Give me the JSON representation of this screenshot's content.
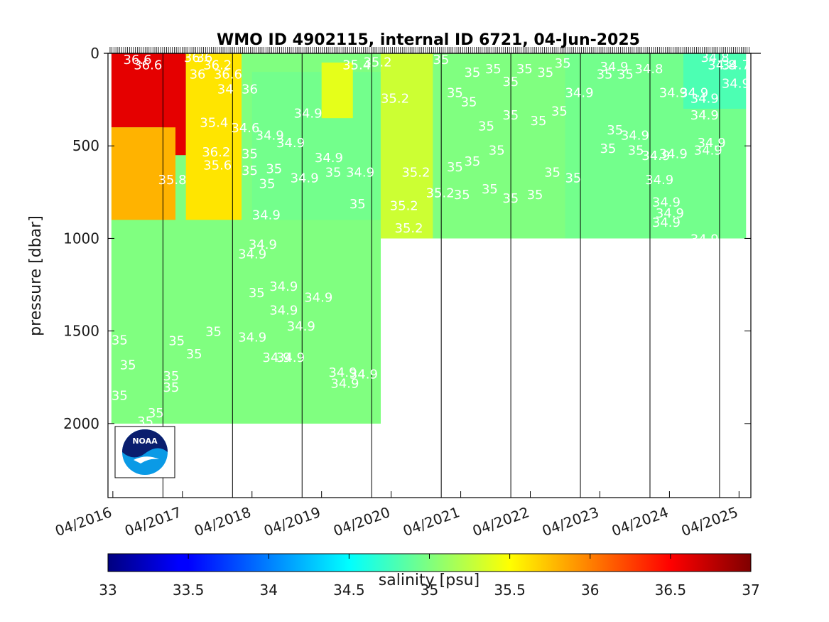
{
  "chart_data": {
    "type": "heatmap",
    "title": "WMO ID 4902115, internal ID 6721, 04-Jun-2025",
    "ylabel": "pressure [dbar]",
    "xlabel": "",
    "ylim": [
      2400,
      0
    ],
    "y_reversed": true,
    "y_ticks": [
      0,
      500,
      1000,
      1500,
      2000
    ],
    "x_start_year": 2016,
    "xlim_years": [
      2015.93,
      2025.17
    ],
    "x_tick_labels": [
      "04/2016",
      "04/2017",
      "04/2018",
      "04/2019",
      "04/2020",
      "04/2021",
      "04/2022",
      "04/2023",
      "04/2024",
      "04/2025"
    ],
    "x_tick_years": [
      2016.0,
      2017.0,
      2018.0,
      2019.0,
      2020.0,
      2021.0,
      2022.0,
      2023.0,
      2024.0,
      2025.0
    ],
    "vertical_lines_years": [
      2016.72,
      2017.72,
      2018.72,
      2019.72,
      2020.72,
      2021.72,
      2022.72,
      2023.72,
      2024.72
    ],
    "colorbar": {
      "label": "salinity [psu]",
      "range": [
        33,
        37
      ],
      "ticks": [
        "33",
        "33.5",
        "34",
        "34.5",
        "35",
        "35.5",
        "36",
        "36.5",
        "37"
      ],
      "colormap": "jet"
    },
    "profile_max_depth": [
      {
        "from": 2015.98,
        "to": 2019.85,
        "pressure": 2000
      },
      {
        "from": 2019.85,
        "to": 2025.1,
        "pressure": 1000
      }
    ],
    "regions": [
      {
        "from": 2015.98,
        "to": 2016.72,
        "pressure_range": [
          0,
          400
        ],
        "salinity": 36.6
      },
      {
        "from": 2016.72,
        "to": 2017.05,
        "pressure_range": [
          0,
          550
        ],
        "salinity": 36.6
      },
      {
        "from": 2015.98,
        "to": 2016.9,
        "pressure_range": [
          400,
          900
        ],
        "salinity": 35.8
      },
      {
        "from": 2017.05,
        "to": 2017.85,
        "pressure_range": [
          0,
          900
        ],
        "salinity": 35.6
      },
      {
        "from": 2015.98,
        "to": 2019.85,
        "pressure_range": [
          900,
          2000
        ],
        "salinity": 35.0
      },
      {
        "from": 2018.0,
        "to": 2019.85,
        "pressure_range": [
          100,
          900
        ],
        "salinity": 34.95
      },
      {
        "from": 2019.0,
        "to": 2019.45,
        "pressure_range": [
          50,
          350
        ],
        "salinity": 35.4
      },
      {
        "from": 2019.85,
        "to": 2020.6,
        "pressure_range": [
          0,
          1000
        ],
        "salinity": 35.3
      },
      {
        "from": 2020.6,
        "to": 2022.5,
        "pressure_range": [
          0,
          1000
        ],
        "salinity": 35.0
      },
      {
        "from": 2022.5,
        "to": 2024.2,
        "pressure_range": [
          0,
          1000
        ],
        "salinity": 34.95
      },
      {
        "from": 2024.2,
        "to": 2025.1,
        "pressure_range": [
          0,
          300
        ],
        "salinity": 34.8
      },
      {
        "from": 2024.2,
        "to": 2025.1,
        "pressure_range": [
          300,
          1000
        ],
        "salinity": 34.95
      }
    ],
    "contour_labels": [
      {
        "t": "36.6",
        "x": 2016.15,
        "p": 30
      },
      {
        "t": "36.6",
        "x": 2016.3,
        "p": 60
      },
      {
        "t": "36",
        "x": 2017.02,
        "p": 20
      },
      {
        "t": "36",
        "x": 2017.2,
        "p": 20
      },
      {
        "t": "36.2",
        "x": 2017.3,
        "p": 60
      },
      {
        "t": "36.6",
        "x": 2017.45,
        "p": 110
      },
      {
        "t": "36",
        "x": 2017.1,
        "p": 110
      },
      {
        "t": "34",
        "x": 2017.5,
        "p": 190
      },
      {
        "t": "36",
        "x": 2017.85,
        "p": 190
      },
      {
        "t": "35.4",
        "x": 2017.25,
        "p": 370
      },
      {
        "t": "34.6",
        "x": 2017.7,
        "p": 400
      },
      {
        "t": "36.2",
        "x": 2017.28,
        "p": 530
      },
      {
        "t": "35.6",
        "x": 2017.3,
        "p": 600
      },
      {
        "t": "35.8",
        "x": 2016.65,
        "p": 680
      },
      {
        "t": "35",
        "x": 2017.85,
        "p": 540
      },
      {
        "t": "35",
        "x": 2017.85,
        "p": 630
      },
      {
        "t": "34.9",
        "x": 2018.05,
        "p": 440
      },
      {
        "t": "34.9",
        "x": 2018.35,
        "p": 480
      },
      {
        "t": "34.9",
        "x": 2018.6,
        "p": 320
      },
      {
        "t": "34.9",
        "x": 2018.9,
        "p": 560
      },
      {
        "t": "34.9",
        "x": 2018.55,
        "p": 670
      },
      {
        "t": "35",
        "x": 2018.2,
        "p": 620
      },
      {
        "t": "35",
        "x": 2018.1,
        "p": 700
      },
      {
        "t": "35.4",
        "x": 2019.3,
        "p": 60
      },
      {
        "t": "35.2",
        "x": 2019.6,
        "p": 45
      },
      {
        "t": "35.2",
        "x": 2019.85,
        "p": 240
      },
      {
        "t": "35",
        "x": 2019.05,
        "p": 640
      },
      {
        "t": "34.9",
        "x": 2019.35,
        "p": 640
      },
      {
        "t": "35",
        "x": 2019.4,
        "p": 810
      },
      {
        "t": "35.2",
        "x": 2020.15,
        "p": 640
      },
      {
        "t": "35.2",
        "x": 2020.5,
        "p": 750
      },
      {
        "t": "35.2",
        "x": 2019.98,
        "p": 820
      },
      {
        "t": "35.2",
        "x": 2020.05,
        "p": 940
      },
      {
        "t": "34.9",
        "x": 2018.0,
        "p": 870
      },
      {
        "t": "34.9",
        "x": 2017.95,
        "p": 1030
      },
      {
        "t": "34.9",
        "x": 2017.8,
        "p": 1080
      },
      {
        "t": "35",
        "x": 2017.95,
        "p": 1290
      },
      {
        "t": "34.9",
        "x": 2018.25,
        "p": 1255
      },
      {
        "t": "34.9",
        "x": 2018.75,
        "p": 1315
      },
      {
        "t": "34.9",
        "x": 2018.25,
        "p": 1385
      },
      {
        "t": "34.9",
        "x": 2018.5,
        "p": 1470
      },
      {
        "t": "35",
        "x": 2017.33,
        "p": 1500
      },
      {
        "t": "34.9",
        "x": 2017.8,
        "p": 1530
      },
      {
        "t": "34.9",
        "x": 2018.15,
        "p": 1640
      },
      {
        "t": "34.9",
        "x": 2018.35,
        "p": 1640
      },
      {
        "t": "35",
        "x": 2017.05,
        "p": 1620
      },
      {
        "t": "35",
        "x": 2016.8,
        "p": 1550
      },
      {
        "t": "35",
        "x": 2016.1,
        "p": 1680
      },
      {
        "t": "35",
        "x": 2015.98,
        "p": 1545
      },
      {
        "t": "35",
        "x": 2016.72,
        "p": 1740
      },
      {
        "t": "35",
        "x": 2016.72,
        "p": 1800
      },
      {
        "t": "35",
        "x": 2015.98,
        "p": 1845
      },
      {
        "t": "35",
        "x": 2016.5,
        "p": 1940
      },
      {
        "t": "35",
        "x": 2016.35,
        "p": 1985
      },
      {
        "t": "35",
        "x": 2016.3,
        "p": 2030
      },
      {
        "t": "34.9",
        "x": 2019.1,
        "p": 1720
      },
      {
        "t": "34.9",
        "x": 2019.4,
        "p": 1730
      },
      {
        "t": "34.9",
        "x": 2019.13,
        "p": 1780
      },
      {
        "t": "35",
        "x": 2020.6,
        "p": 30
      },
      {
        "t": "35",
        "x": 2021.05,
        "p": 100
      },
      {
        "t": "35",
        "x": 2020.8,
        "p": 210
      },
      {
        "t": "35",
        "x": 2021.0,
        "p": 260
      },
      {
        "t": "35",
        "x": 2021.35,
        "p": 80
      },
      {
        "t": "35",
        "x": 2021.6,
        "p": 150
      },
      {
        "t": "35",
        "x": 2021.8,
        "p": 80
      },
      {
        "t": "35",
        "x": 2022.1,
        "p": 100
      },
      {
        "t": "35",
        "x": 2022.35,
        "p": 50
      },
      {
        "t": "34.9",
        "x": 2022.5,
        "p": 210
      },
      {
        "t": "35",
        "x": 2022.0,
        "p": 360
      },
      {
        "t": "35",
        "x": 2022.3,
        "p": 310
      },
      {
        "t": "35",
        "x": 2021.6,
        "p": 330
      },
      {
        "t": "35",
        "x": 2021.25,
        "p": 390
      },
      {
        "t": "35",
        "x": 2021.4,
        "p": 520
      },
      {
        "t": "35",
        "x": 2020.8,
        "p": 610
      },
      {
        "t": "35",
        "x": 2021.05,
        "p": 580
      },
      {
        "t": "35",
        "x": 2021.3,
        "p": 730
      },
      {
        "t": "35",
        "x": 2020.9,
        "p": 760
      },
      {
        "t": "35",
        "x": 2021.6,
        "p": 780
      },
      {
        "t": "35",
        "x": 2021.95,
        "p": 760
      },
      {
        "t": "35",
        "x": 2022.2,
        "p": 640
      },
      {
        "t": "35",
        "x": 2022.5,
        "p": 670
      },
      {
        "t": "34.9",
        "x": 2023.0,
        "p": 70
      },
      {
        "t": "35",
        "x": 2022.95,
        "p": 110
      },
      {
        "t": "35",
        "x": 2023.25,
        "p": 110
      },
      {
        "t": "34.8",
        "x": 2023.5,
        "p": 80
      },
      {
        "t": "34.9",
        "x": 2023.85,
        "p": 210
      },
      {
        "t": "34.9",
        "x": 2024.15,
        "p": 210
      },
      {
        "t": "35",
        "x": 2023.1,
        "p": 410
      },
      {
        "t": "34.9",
        "x": 2023.3,
        "p": 440
      },
      {
        "t": "35",
        "x": 2023.0,
        "p": 510
      },
      {
        "t": "35",
        "x": 2023.4,
        "p": 520
      },
      {
        "t": "34.9",
        "x": 2023.85,
        "p": 540
      },
      {
        "t": "34.9",
        "x": 2023.6,
        "p": 550
      },
      {
        "t": "34.9",
        "x": 2023.65,
        "p": 680
      },
      {
        "t": "34.9",
        "x": 2023.75,
        "p": 800
      },
      {
        "t": "34.9",
        "x": 2023.8,
        "p": 860
      },
      {
        "t": "34.9",
        "x": 2023.75,
        "p": 910
      },
      {
        "t": "34.9",
        "x": 2024.3,
        "p": 1000
      },
      {
        "t": "34.9",
        "x": 2024.4,
        "p": 480
      },
      {
        "t": "34.9",
        "x": 2024.35,
        "p": 520
      },
      {
        "t": "34.9",
        "x": 2024.3,
        "p": 330
      },
      {
        "t": "34.9",
        "x": 2024.3,
        "p": 240
      },
      {
        "t": "34.9",
        "x": 2024.75,
        "p": 160
      },
      {
        "t": "34.8",
        "x": 2024.55,
        "p": 60
      },
      {
        "t": "34.7",
        "x": 2024.75,
        "p": 60
      },
      {
        "t": "34.8",
        "x": 2024.45,
        "p": 20
      }
    ]
  }
}
